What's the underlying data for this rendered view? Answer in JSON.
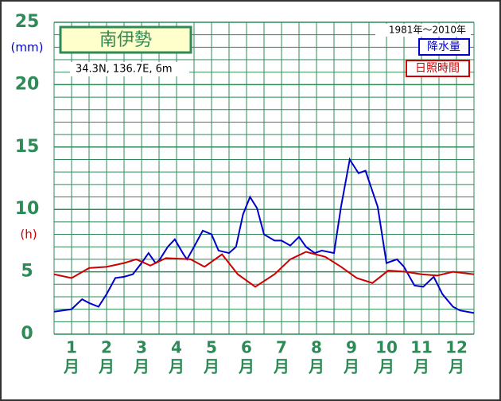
{
  "chart_data": {
    "type": "line",
    "title": "南伊勢",
    "location": "34.3N,  136.7E,  6m",
    "period": "1981年〜2010年",
    "y_unit_left": "(mm)",
    "y_unit_right": "(h)",
    "categories": [
      "1",
      "2",
      "3",
      "4",
      "5",
      "6",
      "7",
      "8",
      "9",
      "10",
      "11",
      "12"
    ],
    "category_unit": "月",
    "xlim": [
      0,
      12
    ],
    "ylim": [
      0,
      25
    ],
    "yticks": [
      0,
      5,
      10,
      15,
      20,
      25
    ],
    "yminor": [
      1,
      2,
      3,
      4,
      6,
      7,
      8,
      9,
      11,
      12,
      13,
      14,
      16,
      17,
      18,
      19,
      21,
      22,
      23,
      24
    ],
    "xgrid": [
      0,
      0.5,
      1,
      1.5,
      2,
      2.5,
      3,
      3.5,
      4,
      4.5,
      5,
      5.5,
      6,
      6.5,
      7,
      7.5,
      8,
      8.5,
      9,
      9.5,
      10,
      10.5,
      11,
      11.5,
      12
    ],
    "grid": true,
    "series": [
      {
        "name": "降水量",
        "color": "#0000cc",
        "x": [
          0,
          0.5,
          0.8,
          1.0,
          1.27,
          1.5,
          1.75,
          2.0,
          2.25,
          2.5,
          2.7,
          2.9,
          3.0,
          3.25,
          3.45,
          3.7,
          3.8,
          4.0,
          4.25,
          4.5,
          4.7,
          5.0,
          5.2,
          5.4,
          5.6,
          5.8,
          6.0,
          6.3,
          6.5,
          6.75,
          7.0,
          7.2,
          7.45,
          7.65,
          8.0,
          8.2,
          8.45,
          8.7,
          8.9,
          9.25,
          9.5,
          9.8,
          10.0,
          10.3,
          10.55,
          10.85,
          11.1,
          11.4,
          11.6,
          12
        ],
        "values": [
          1.8,
          2.0,
          2.8,
          2.5,
          2.2,
          3.2,
          4.5,
          4.6,
          4.8,
          5.7,
          6.5,
          5.7,
          5.9,
          7.0,
          7.6,
          6.4,
          6.0,
          7.0,
          8.3,
          8.0,
          6.7,
          6.5,
          7.0,
          9.6,
          11.0,
          10.1,
          8.0,
          7.5,
          7.5,
          7.1,
          7.8,
          7.0,
          6.5,
          6.7,
          6.5,
          10.2,
          14.0,
          12.9,
          13.1,
          10.2,
          5.7,
          6.0,
          5.4,
          3.9,
          3.8,
          4.6,
          3.2,
          2.2,
          1.9,
          1.7
        ]
      },
      {
        "name": "日照時間",
        "color": "#cc0000",
        "x": [
          0,
          0.5,
          1.0,
          1.5,
          2.0,
          2.35,
          2.75,
          3.2,
          3.9,
          4.3,
          4.8,
          5.25,
          5.75,
          6.3,
          6.75,
          7.2,
          7.75,
          8.2,
          8.65,
          9.1,
          9.55,
          10.05,
          10.5,
          10.95,
          11.4,
          12
        ],
        "values": [
          4.8,
          4.5,
          5.3,
          5.4,
          5.7,
          6.0,
          5.5,
          6.1,
          6.0,
          5.4,
          6.4,
          4.8,
          3.8,
          4.8,
          6.0,
          6.6,
          6.2,
          5.4,
          4.5,
          4.1,
          5.1,
          5.0,
          4.8,
          4.7,
          5.0,
          4.8
        ]
      }
    ]
  }
}
